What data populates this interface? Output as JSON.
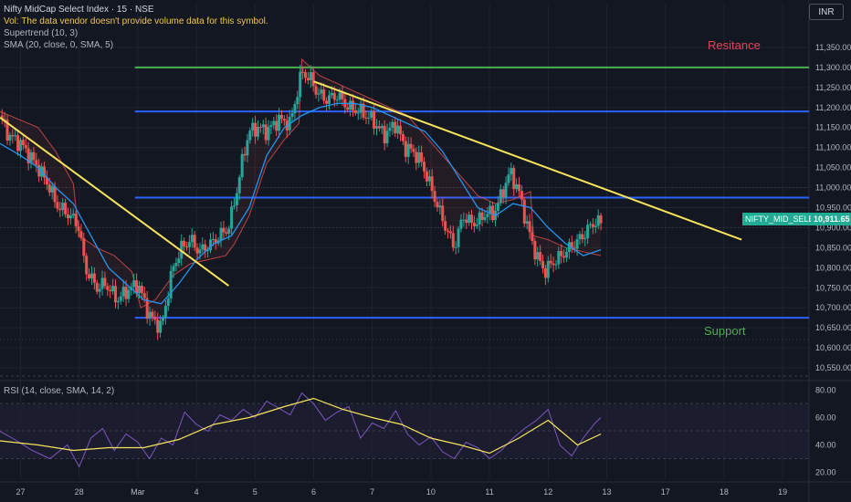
{
  "header": {
    "title": "Nifty MidCap Select Index · 15 · NSE",
    "volume_note": "Vol: The data vendor doesn't provide volume data for this symbol.",
    "indicator_supertrend": "Supertrend (10, 3)",
    "indicator_sma": "SMA (20, close, 0, SMA, 5)",
    "currency": "INR"
  },
  "rsi_panel": {
    "label": "RSI (14, close, SMA, 14, 2)"
  },
  "annotations": {
    "resistance": "Resitance",
    "support": "Support"
  },
  "price_tag": {
    "symbol": "NIFTY_MID_SELECT",
    "value": "10,911.65"
  },
  "colors": {
    "background": "#131722",
    "up": "#26a69a",
    "down": "#ef5350",
    "trendline": "#f7e45c",
    "horizontal_blue": "#2962ff",
    "horizontal_green": "#4caf50",
    "sma": "#2196f3",
    "rsi": "#7e57c2",
    "rsi_ma": "#f7e45c"
  },
  "chart_data": {
    "type": "line",
    "price_axis": {
      "range": [
        10525,
        11400
      ],
      "ticks": [
        "11,350.00",
        "11,300.00",
        "11,250.00",
        "11,200.00",
        "11,150.00",
        "11,100.00",
        "11,050.00",
        "11,000.00",
        "10,950.00",
        "10,900.00",
        "10,850.00",
        "10,800.00",
        "10,750.00",
        "10,700.00",
        "10,650.00",
        "10,600.00",
        "10,550.00"
      ],
      "tick_values": [
        11350,
        11300,
        11250,
        11200,
        11150,
        11100,
        11050,
        11000,
        10950,
        10900,
        10850,
        10800,
        10750,
        10700,
        10650,
        10600,
        10550
      ]
    },
    "rsi_axis": {
      "range": [
        15,
        85
      ],
      "ticks": [
        "80.00",
        "60.00",
        "40.00",
        "20.00"
      ],
      "tick_values": [
        80,
        60,
        40,
        20
      ],
      "band": [
        30,
        70
      ]
    },
    "time_axis": {
      "labels": [
        "27",
        "28",
        "Mar",
        "4",
        "5",
        "6",
        "7",
        "10",
        "11",
        "12",
        "13",
        "17",
        "18",
        "19"
      ],
      "positions": [
        0,
        1,
        2,
        3,
        4,
        5,
        6,
        7,
        8,
        9,
        10,
        11,
        12,
        13
      ],
      "range": [
        -0.35,
        13.45
      ]
    },
    "levels": [
      {
        "name": "resistance",
        "value": 11300,
        "color": "#4caf50"
      },
      {
        "name": "upper-band",
        "value": 11190,
        "color": "#2962ff"
      },
      {
        "name": "middle-band",
        "value": 10975,
        "color": "#2962ff"
      },
      {
        "name": "support",
        "value": 10675,
        "color": "#2962ff"
      }
    ],
    "trendlines": [
      {
        "name": "trendline-1",
        "from": [
          -0.35,
          11175
        ],
        "to": [
          3.55,
          10755
        ]
      },
      {
        "name": "trendline-2",
        "from": [
          5.0,
          11265
        ],
        "to": [
          12.3,
          10870
        ]
      }
    ],
    "price_path": {
      "times": [
        -0.35,
        -0.2,
        0.0,
        0.15,
        0.3,
        0.5,
        0.6,
        0.75,
        0.85,
        1.0,
        1.1,
        1.3,
        1.45,
        1.65,
        1.8,
        2.0,
        2.2,
        2.4,
        2.6,
        2.75,
        2.9,
        3.05,
        3.25,
        3.4,
        3.55,
        3.7,
        3.8,
        3.9,
        4.05,
        4.2,
        4.4,
        4.6,
        4.8,
        4.95,
        5.05,
        5.2,
        5.4,
        5.6,
        5.8,
        6.0,
        6.2,
        6.4,
        6.55,
        6.7,
        6.85,
        7.0,
        7.2,
        7.4,
        7.55,
        7.7,
        7.85,
        7.95,
        8.05,
        8.2,
        8.35,
        8.5,
        8.65,
        8.8,
        8.95,
        9.05,
        9.15,
        9.3,
        9.45,
        9.6,
        9.7,
        9.8,
        9.9
      ],
      "values": [
        11180,
        11130,
        11110,
        11080,
        11050,
        11000,
        10960,
        10940,
        10930,
        10900,
        10800,
        10750,
        10760,
        10720,
        10740,
        10760,
        10680,
        10650,
        10800,
        10850,
        10870,
        10840,
        10860,
        10880,
        10900,
        11000,
        11080,
        11140,
        11150,
        11140,
        11170,
        11160,
        11290,
        11270,
        11240,
        11220,
        11230,
        11200,
        11190,
        11170,
        11130,
        11160,
        11100,
        11090,
        11060,
        11000,
        10920,
        10850,
        10930,
        10910,
        10920,
        10940,
        10930,
        10980,
        11040,
        10990,
        10900,
        10830,
        10790,
        10810,
        10820,
        10840,
        10860,
        10880,
        10900,
        10915,
        10912
      ]
    },
    "sma_path": {
      "times": [
        -0.35,
        0.0,
        0.3,
        0.6,
        0.9,
        1.2,
        1.5,
        1.8,
        2.1,
        2.4,
        2.7,
        3.0,
        3.3,
        3.6,
        3.9,
        4.2,
        4.5,
        4.8,
        5.1,
        5.4,
        5.7,
        6.0,
        6.3,
        6.6,
        6.9,
        7.2,
        7.5,
        7.8,
        8.1,
        8.4,
        8.7,
        9.0,
        9.3,
        9.6,
        9.9
      ],
      "values": [
        11110,
        11080,
        11050,
        11000,
        10960,
        10880,
        10800,
        10760,
        10720,
        10710,
        10760,
        10820,
        10860,
        10880,
        10950,
        11080,
        11150,
        11180,
        11200,
        11210,
        11210,
        11200,
        11180,
        11160,
        11140,
        11090,
        11020,
        10950,
        10930,
        10960,
        10950,
        10900,
        10860,
        10830,
        10845
      ]
    },
    "supertrend_path": {
      "times": [
        -0.35,
        0.3,
        0.6,
        0.9,
        1.0,
        1.3,
        1.6,
        1.9,
        2.05,
        2.3,
        2.6,
        2.9,
        3.2,
        3.5,
        3.65,
        3.9,
        4.2,
        4.5,
        4.75,
        4.8,
        5.1,
        5.4,
        5.7,
        6.0,
        6.3,
        6.6,
        6.9,
        7.2,
        7.5,
        7.8,
        8.1,
        8.4,
        8.7,
        8.75,
        9.0,
        9.3,
        9.6,
        9.9
      ],
      "values": [
        11190,
        11150,
        11090,
        11010,
        10880,
        10850,
        10830,
        10790,
        10700,
        10720,
        10780,
        10810,
        10820,
        10830,
        10860,
        10930,
        11060,
        11120,
        11160,
        11320,
        11280,
        11260,
        11240,
        11220,
        11200,
        11180,
        11130,
        11080,
        11030,
        10980,
        10960,
        10970,
        10990,
        10880,
        10870,
        10850,
        10840,
        10830
      ]
    },
    "rsi_path": {
      "times": [
        -0.35,
        -0.1,
        0.2,
        0.5,
        0.8,
        1.0,
        1.2,
        1.4,
        1.6,
        1.8,
        2.0,
        2.2,
        2.4,
        2.6,
        2.8,
        3.0,
        3.2,
        3.4,
        3.6,
        3.8,
        4.0,
        4.2,
        4.4,
        4.6,
        4.8,
        5.0,
        5.2,
        5.4,
        5.6,
        5.8,
        6.0,
        6.2,
        6.4,
        6.6,
        6.8,
        7.0,
        7.2,
        7.4,
        7.6,
        7.8,
        8.0,
        8.2,
        8.4,
        8.6,
        8.8,
        9.0,
        9.2,
        9.4,
        9.6,
        9.8,
        9.9
      ],
      "values": [
        50,
        44,
        36,
        30,
        40,
        24,
        45,
        52,
        36,
        48,
        42,
        30,
        45,
        40,
        64,
        55,
        50,
        62,
        58,
        66,
        60,
        72,
        67,
        62,
        78,
        70,
        58,
        64,
        68,
        45,
        56,
        52,
        65,
        48,
        40,
        46,
        35,
        30,
        42,
        38,
        30,
        36,
        45,
        52,
        58,
        66,
        40,
        32,
        45,
        56,
        60
      ]
    },
    "rsi_ma_path": {
      "times": [
        -0.35,
        0.3,
        0.9,
        1.5,
        2.1,
        2.7,
        3.3,
        3.9,
        4.5,
        5.0,
        5.5,
        6.0,
        6.5,
        7.0,
        7.5,
        8.0,
        8.5,
        9.0,
        9.5,
        9.9
      ],
      "values": [
        43,
        40,
        36,
        38,
        38,
        44,
        55,
        60,
        68,
        74,
        66,
        60,
        55,
        45,
        40,
        34,
        45,
        58,
        40,
        48
      ]
    }
  }
}
